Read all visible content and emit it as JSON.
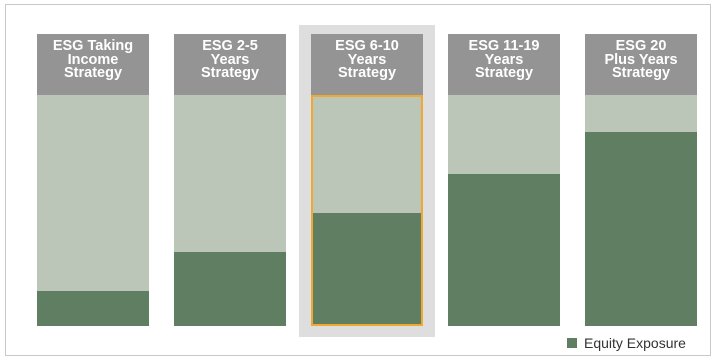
{
  "chart_data": {
    "type": "bar",
    "categories": [
      "ESG Taking\nIncome\nStrategy",
      "ESG 2-5\nYears\nStrategy",
      "ESG 6-10\nYears\nStrategy",
      "ESG 11-19\nYears\nStrategy",
      "ESG 20\nPlus Years\nStrategy"
    ],
    "series": [
      {
        "name": "Equity Exposure",
        "values": [
          0.15,
          0.32,
          0.49,
          0.66,
          0.84
        ]
      }
    ],
    "ylim": [
      0,
      1
    ],
    "highlighted_category": "ESG 6-10\nYears\nStrategy",
    "legend_position": "bottom-right",
    "grid": false,
    "title": "",
    "xlabel": "",
    "ylabel": ""
  },
  "colors": {
    "header": "#949494",
    "remainder": "#bcc6b8",
    "equity": "#607e62",
    "highlight_background": "#dedede",
    "highlight_outline": "#f0a930"
  },
  "legend": {
    "label": "Equity Exposure"
  }
}
